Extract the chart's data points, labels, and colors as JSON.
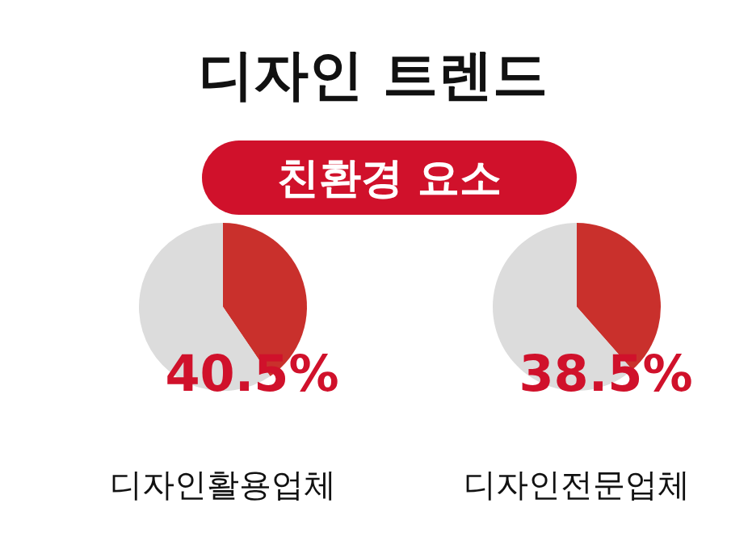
{
  "chart_data": [
    {
      "type": "other",
      "title": "디자인 트렌드",
      "subtitle": "친환경 요소",
      "color": "#d0112b"
    },
    {
      "type": "pie",
      "xlabel": "디자인활용업체",
      "categories": [
        null,
        null
      ],
      "values": [
        40.5,
        59.5
      ],
      "colors": [
        "#c9302c",
        "#dcdcdc"
      ],
      "value_labels": [
        "40.5%",
        null
      ]
    },
    {
      "type": "pie",
      "xlabel": "디자인전문업체",
      "categories": [
        null,
        null
      ],
      "values": [
        38.5,
        61.5
      ],
      "colors": [
        "#c9302c",
        "#dcdcdc"
      ],
      "value_labels": [
        "38.5%",
        null
      ]
    }
  ]
}
